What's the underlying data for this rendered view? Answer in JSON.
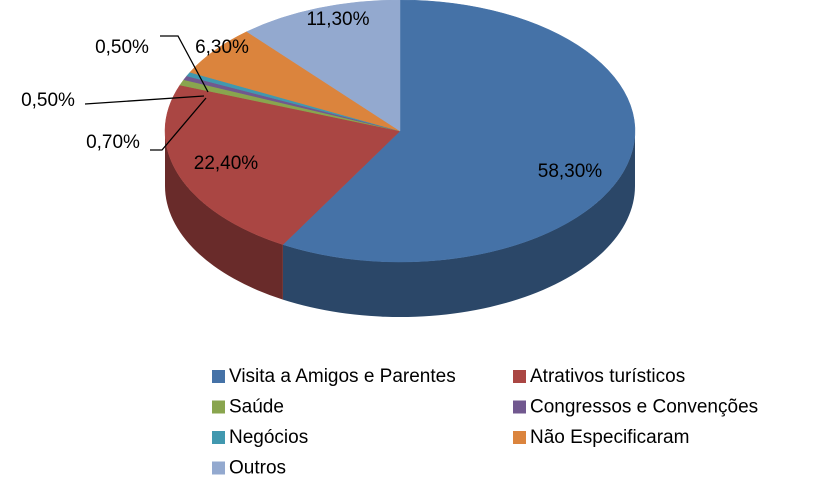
{
  "chart_data": {
    "type": "pie",
    "categories": [
      "Visita a Amigos e Parentes",
      "Atrativos turísticos",
      "Saúde",
      "Congressos e Convenções",
      "Negócios",
      "Não Especificaram",
      "Outros"
    ],
    "values": [
      58.3,
      22.4,
      0.7,
      0.5,
      0.5,
      6.3,
      11.3
    ],
    "value_labels": [
      "58,30%",
      "22,40%",
      "0,70%",
      "0,50%",
      "0,50%",
      "6,30%",
      "11,30%"
    ],
    "colors": [
      "#4572a7",
      "#aa4643",
      "#89a54e",
      "#71588f",
      "#4198af",
      "#db843d",
      "#93a9cf"
    ],
    "legend": "bottom"
  }
}
